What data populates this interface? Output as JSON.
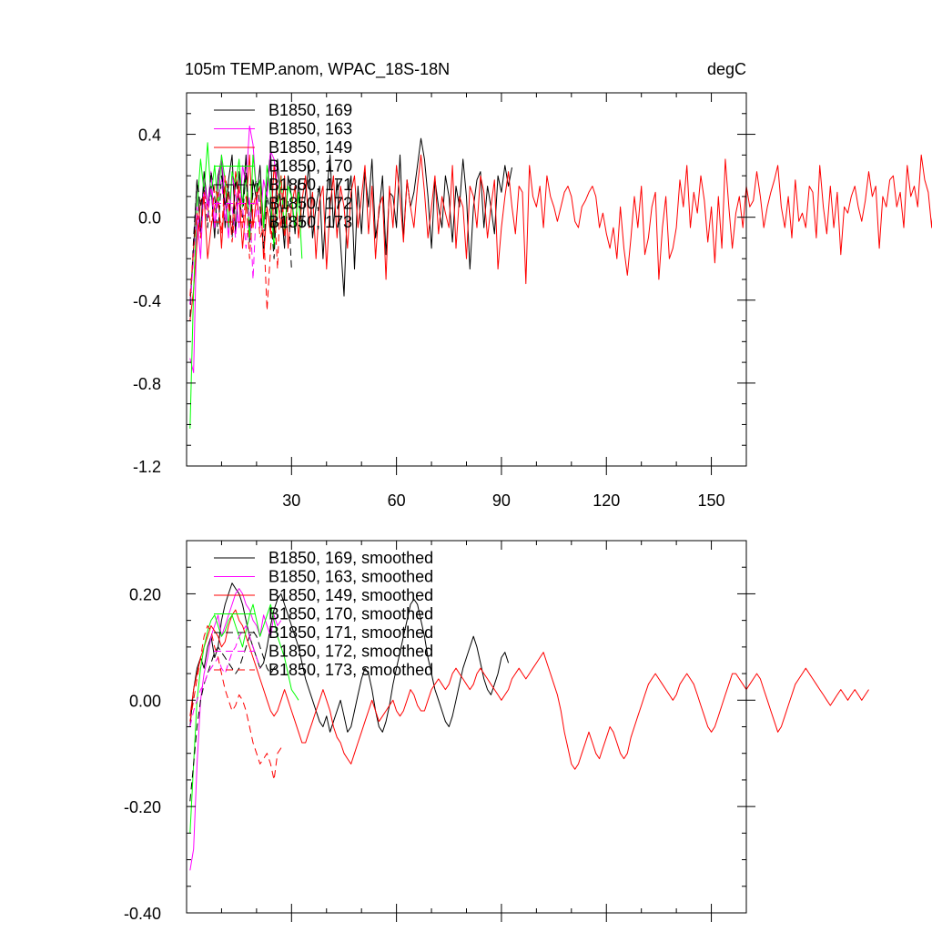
{
  "chart_data": [
    {
      "type": "line",
      "title": "105m TEMP.anom, WPAC_18S-18N",
      "units": "degC",
      "xlim": [
        0,
        160
      ],
      "ylim": [
        -1.2,
        0.6
      ],
      "xticks": [
        30,
        60,
        90,
        120,
        150
      ],
      "xtick_labels": [
        "30",
        "60",
        "90",
        "120",
        "150"
      ],
      "yticks": [
        0.4,
        0.0,
        -0.4,
        -0.8,
        -1.2
      ],
      "ytick_labels": [
        "0.4",
        "0.0",
        "-0.4",
        "-0.8",
        "-1.2"
      ],
      "legend": [
        "B1850, 169",
        "B1850, 163",
        "B1850, 149",
        "B1850, 170",
        "B1850, 171",
        "B1850, 172",
        "B1850, 173"
      ],
      "series": [
        {
          "name": "B1850, 169",
          "color": "#000000",
          "dash": "solid",
          "values": [
            -0.42,
            -0.15,
            0.18,
            -0.08,
            0.22,
            0.05,
            0.15,
            -0.1,
            0.2,
            0.28,
            -0.05,
            0.18,
            0.3,
            -0.08,
            0.22,
            0.05,
            0.3,
            -0.12,
            0.18,
            0.08,
            0.25,
            -0.05,
            0.15,
            0.32,
            -0.1,
            0.28,
            0.05,
            -0.15,
            0.2,
            0.1,
            -0.08,
            0.18,
            -0.05,
            0.12,
            0.25,
            -0.1,
            0.05,
            0.15,
            -0.2,
            0.1,
            0.3,
            -0.05,
            0.18,
            -0.12,
            -0.38,
            0.08,
            0.2,
            -0.25,
            0.15,
            -0.08,
            0.22,
            0.05,
            0.28,
            -0.1,
            0.02,
            0.2,
            -0.18,
            0.12,
            0.1,
            -0.05,
            0.3,
            -0.1,
            0.18,
            0.05,
            0.12,
            0.25,
            0.38,
            0.28,
            0.1,
            -0.15,
            0.18,
            0.05,
            -0.05,
            0.2,
            0.1,
            -0.12,
            0.15,
            0.05,
            0.28,
            0.1,
            -0.25,
            0.05,
            0.18,
            0.22,
            -0.05,
            0.15,
            0.05,
            -0.08,
            0.2,
            0.12,
            0.25,
            0.15,
            0.24
          ]
        },
        {
          "name": "B1850, 163",
          "color": "#ff00ff",
          "dash": "solid",
          "values": [
            -0.68,
            -0.75,
            0.0,
            -0.2,
            0.18,
            0.05,
            0.22,
            -0.05,
            0.15,
            0.3,
            0.08,
            -0.1,
            0.2,
            0.12,
            -0.05,
            0.25,
            0.15,
            0.44,
            0.35,
            0.12,
            -0.05,
            0.18,
            0.1,
            0.32,
            0.28,
            0.15
          ]
        },
        {
          "name": "B1850, 149",
          "color": "#ff0000",
          "dash": "solid",
          "values": [
            -0.5,
            -0.35,
            -0.12,
            0.08,
            0.1,
            -0.2,
            -0.05,
            0.05,
            0.12,
            -0.15,
            0.15,
            0.05,
            -0.08,
            0.22,
            0.1,
            -0.15,
            0.05,
            0.3,
            -0.05,
            0.1,
            0.15,
            -0.2,
            0.05,
            -0.08,
            0.25,
            0.1,
            -0.05,
            0.2,
            -0.15,
            0.05,
            0.15,
            -0.1,
            0.08,
            0.2,
            -0.05,
            0.12,
            -0.2,
            0.08,
            0.15,
            -0.25,
            0.05,
            0.2,
            -0.1,
            0.15,
            0.05,
            -0.15,
            0.12,
            0.2,
            -0.05,
            0.1,
            0.25,
            -0.08,
            0.15,
            -0.2,
            0.05,
            0.1,
            -0.3,
            0.15,
            -0.05,
            0.25,
            0.1,
            -0.12,
            0.18,
            0.05,
            -0.05,
            0.15,
            0.3,
            0.12,
            -0.1,
            0.05,
            0.2,
            -0.08,
            0.1,
            0.02,
            -0.05,
            0.25,
            -0.15,
            0.1,
            0.05,
            -0.2,
            0.15,
            0.1,
            -0.05,
            0.2,
            0.12,
            -0.1,
            0.05,
            0.18,
            -0.25,
            -0.05,
            0.1,
            0.22,
            0.05,
            -0.08,
            0.15,
            0.12,
            -0.32,
            0.25,
            0.1,
            0.05,
            0.15,
            -0.05,
            0.2,
            0.1,
            0.05,
            -0.02,
            0.05,
            0.12,
            0.15,
            0.1,
            -0.02,
            -0.05,
            0.05,
            0.08,
            0.12,
            0.15,
            0.1,
            -0.05,
            0.02,
            -0.08,
            -0.15,
            -0.05,
            -0.2,
            0.05,
            -0.15,
            -0.28,
            -0.1,
            0.1,
            -0.05,
            0.15,
            -0.18,
            -0.1,
            0.05,
            0.12,
            -0.3,
            -0.05,
            0.1,
            -0.2,
            -0.15,
            -0.05,
            0.18,
            0.05,
            0.25,
            -0.05,
            0.12,
            0.02,
            0.2,
            0.08,
            -0.12,
            0.05,
            -0.22,
            0.1,
            -0.15,
            0.28,
            0.05,
            -0.15,
            0.02,
            0.1,
            -0.05,
            0.15,
            0.05,
            0.08,
            0.22,
            0.1,
            -0.05,
            0.05,
            0.12,
            0.18,
            0.25,
            0.05,
            -0.05,
            0.1,
            -0.1,
            0.18,
            -0.02,
            0.02,
            -0.05,
            0.15,
            0.12,
            -0.1,
            0.25,
            0.05,
            -0.08,
            0.15,
            -0.05,
            0.12,
            -0.18,
            0.05,
            0.02,
            0.1,
            0.15,
            0.05,
            -0.02,
            0.08,
            0.22,
            0.1,
            0.15,
            -0.15,
            0.1,
            0.05,
            0.18,
            0.2,
            0.05,
            0.12,
            -0.05,
            0.25,
            0.1,
            0.15,
            0.05,
            0.3,
            0.18,
            0.12,
            -0.05,
            0.2,
            0.02,
            0.08,
            0.18,
            -0.08,
            0.1,
            0.05,
            0.12,
            0.22,
            -0.15,
            0.25
          ]
        },
        {
          "name": "B1850, 170",
          "color": "#00ff00",
          "dash": "solid",
          "values": [
            -1.02,
            -0.35,
            0.05,
            0.28,
            0.12,
            0.36,
            0.1,
            0.25,
            0.05,
            0.3,
            0.18,
            -0.05,
            0.22,
            0.15,
            0.28,
            0.05,
            0.2,
            -0.1,
            0.3,
            0.12,
            0.18,
            -0.05,
            0.25,
            0.1,
            -0.15,
            0.05,
            0.2,
            -0.08,
            0.15,
            0.1,
            -0.05,
            0.12,
            -0.2
          ]
        },
        {
          "name": "B1850, 171",
          "color": "#000000",
          "dash": "dashed",
          "values": [
            -0.48,
            -0.1,
            0.18,
            0.05,
            0.15,
            -0.05,
            0.22,
            0.1,
            -0.08,
            0.2,
            0.05,
            0.15,
            -0.1,
            0.18,
            0.08,
            0.0,
            0.22,
            -0.05,
            0.12,
            0.18,
            0.05,
            -0.15,
            0.1,
            0.02,
            -0.2,
            0.15,
            0.05,
            -0.1,
            0.08,
            -0.25
          ]
        },
        {
          "name": "B1850, 172",
          "color": "#ff00ff",
          "dash": "dashed",
          "values": [
            -0.42,
            -0.2,
            0.05,
            -0.08,
            0.12,
            0.0,
            0.15,
            -0.05,
            0.08,
            0.18,
            -0.02,
            0.1,
            0.05,
            -0.1,
            0.15,
            0.05,
            -0.15,
            0.1,
            -0.3,
            0.08,
            -0.05
          ]
        },
        {
          "name": "B1850, 173",
          "color": "#ff0000",
          "dash": "dashed",
          "values": [
            -0.38,
            -0.15,
            0.02,
            -0.1,
            0.12,
            0.05,
            -0.05,
            0.15,
            0.08,
            -0.08,
            0.2,
            0.1,
            -0.12,
            0.05,
            0.15,
            -0.05,
            0.1,
            -0.2,
            0.05,
            0.12,
            -0.1,
            -0.05,
            -0.45,
            -0.15,
            0.1,
            -0.25,
            0.2,
            -0.1,
            0.05,
            -0.05
          ]
        }
      ]
    },
    {
      "type": "line",
      "xlim": [
        0,
        160
      ],
      "ylim": [
        -0.4,
        0.3
      ],
      "xticks": [
        30,
        60,
        90,
        120,
        150
      ],
      "yticks": [
        0.2,
        0.0,
        -0.2,
        -0.4
      ],
      "ytick_labels": [
        "0.20",
        "0.00",
        "-0.20",
        "-0.40"
      ],
      "legend": [
        "B1850, 169, smoothed",
        "B1850, 163, smoothed",
        "B1850, 149, smoothed",
        "B1850, 170, smoothed",
        "B1850, 171, smoothed",
        "B1850, 172, smoothed",
        "B1850, 173, smoothed"
      ],
      "series": [
        {
          "name": "B1850, 169, smoothed",
          "color": "#000000",
          "dash": "solid",
          "values": [
            -0.05,
            0.02,
            0.06,
            0.08,
            0.06,
            0.1,
            0.12,
            0.08,
            0.1,
            0.15,
            0.18,
            0.2,
            0.22,
            0.21,
            0.2,
            0.18,
            0.15,
            0.12,
            0.1,
            0.08,
            0.06,
            0.07,
            0.1,
            0.14,
            0.17,
            0.19,
            0.2,
            0.18,
            0.16,
            0.14,
            0.12,
            0.1,
            0.07,
            0.04,
            0.02,
            0.0,
            -0.02,
            -0.04,
            -0.05,
            -0.03,
            -0.06,
            -0.04,
            -0.02,
            0.0,
            -0.03,
            -0.06,
            -0.05,
            -0.02,
            0.01,
            0.04,
            0.06,
            0.05,
            0.02,
            -0.02,
            -0.05,
            -0.06,
            -0.04,
            -0.01,
            0.03,
            0.06,
            0.09,
            0.12,
            0.15,
            0.18,
            0.19,
            0.18,
            0.15,
            0.12,
            0.08,
            0.05,
            0.02,
            0.0,
            -0.02,
            -0.04,
            -0.05,
            -0.03,
            0.0,
            0.03,
            0.06,
            0.08,
            0.1,
            0.12,
            0.1,
            0.07,
            0.04,
            0.02,
            0.01,
            0.03,
            0.05,
            0.08,
            0.09,
            0.07
          ]
        },
        {
          "name": "B1850, 163, smoothed",
          "color": "#ff00ff",
          "dash": "solid",
          "values": [
            -0.32,
            -0.28,
            -0.12,
            0.0,
            0.05,
            0.08,
            0.12,
            0.14,
            0.16,
            0.12,
            0.14,
            0.16,
            0.18,
            0.2,
            0.21,
            0.2,
            0.18,
            0.17,
            0.15,
            0.14,
            0.12,
            0.16,
            0.14,
            0.12,
            0.16,
            0.14,
            0.15
          ]
        },
        {
          "name": "B1850, 149, smoothed",
          "color": "#ff0000",
          "dash": "solid",
          "values": [
            -0.03,
            0.02,
            0.05,
            0.08,
            0.1,
            0.12,
            0.14,
            0.13,
            0.12,
            0.1,
            0.11,
            0.14,
            0.16,
            0.17,
            0.15,
            0.14,
            0.12,
            0.1,
            0.08,
            0.06,
            0.04,
            0.02,
            0.0,
            -0.02,
            -0.03,
            -0.02,
            0.0,
            0.02,
            0.0,
            -0.02,
            -0.04,
            -0.06,
            -0.08,
            -0.08,
            -0.06,
            -0.04,
            -0.02,
            0.0,
            0.02,
            0.0,
            -0.02,
            -0.05,
            -0.07,
            -0.08,
            -0.1,
            -0.11,
            -0.12,
            -0.1,
            -0.08,
            -0.06,
            -0.04,
            -0.02,
            0.0,
            -0.02,
            -0.04,
            -0.03,
            -0.02,
            -0.01,
            0.0,
            -0.02,
            -0.03,
            -0.02,
            0.0,
            0.02,
            0.01,
            -0.01,
            -0.02,
            -0.02,
            0.0,
            0.02,
            0.03,
            0.04,
            0.03,
            0.02,
            0.03,
            0.05,
            0.06,
            0.05,
            0.04,
            0.03,
            0.02,
            0.03,
            0.05,
            0.06,
            0.05,
            0.04,
            0.03,
            0.02,
            0.01,
            0.0,
            0.01,
            0.02,
            0.04,
            0.05,
            0.06,
            0.05,
            0.04,
            0.05,
            0.06,
            0.07,
            0.08,
            0.09,
            0.07,
            0.05,
            0.03,
            0.01,
            -0.02,
            -0.06,
            -0.09,
            -0.12,
            -0.13,
            -0.12,
            -0.1,
            -0.08,
            -0.06,
            -0.08,
            -0.1,
            -0.11,
            -0.09,
            -0.07,
            -0.05,
            -0.06,
            -0.08,
            -0.1,
            -0.11,
            -0.1,
            -0.07,
            -0.05,
            -0.03,
            -0.01,
            0.01,
            0.03,
            0.04,
            0.05,
            0.04,
            0.03,
            0.02,
            0.01,
            0.0,
            0.01,
            0.03,
            0.04,
            0.05,
            0.04,
            0.03,
            0.01,
            -0.01,
            -0.03,
            -0.05,
            -0.06,
            -0.05,
            -0.03,
            -0.01,
            0.01,
            0.03,
            0.05,
            0.05,
            0.04,
            0.03,
            0.02,
            0.03,
            0.04,
            0.05,
            0.04,
            0.02,
            0.0,
            -0.02,
            -0.04,
            -0.06,
            -0.05,
            -0.03,
            -0.01,
            0.01,
            0.03,
            0.04,
            0.05,
            0.06,
            0.05,
            0.04,
            0.03,
            0.02,
            0.01,
            0.0,
            -0.01,
            0.0,
            0.01,
            0.02,
            0.01,
            0.0,
            0.01,
            0.02,
            0.01,
            0.0,
            0.01,
            0.02
          ]
        },
        {
          "name": "B1850, 170, smoothed",
          "color": "#00ff00",
          "dash": "solid",
          "values": [
            -0.25,
            -0.12,
            0.0,
            0.06,
            0.1,
            0.13,
            0.15,
            0.16,
            0.14,
            0.12,
            0.13,
            0.15,
            0.16,
            0.14,
            0.12,
            0.1,
            0.13,
            0.16,
            0.18,
            0.15,
            0.12,
            0.14,
            0.16,
            0.18,
            0.15,
            0.12,
            0.1,
            0.08,
            0.05,
            0.02,
            0.01,
            0.0
          ]
        },
        {
          "name": "B1850, 171, smoothed",
          "color": "#000000",
          "dash": "dashed",
          "values": [
            -0.19,
            -0.12,
            -0.05,
            0.0,
            0.03,
            0.05,
            0.07,
            0.09,
            0.1,
            0.09,
            0.08,
            0.07,
            0.06,
            0.05,
            0.06,
            0.08,
            0.1,
            0.12,
            0.13,
            0.12,
            0.1,
            0.08,
            0.06,
            0.05,
            0.06,
            0.07
          ]
        },
        {
          "name": "B1850, 172, smoothed",
          "color": "#ff00ff",
          "dash": "dashed",
          "values": [
            -0.05,
            -0.02,
            0.0,
            0.02,
            0.03,
            0.05,
            0.06,
            0.07,
            0.08,
            0.06,
            0.05,
            0.07,
            0.09,
            0.1,
            0.12,
            0.13,
            0.14,
            0.12,
            0.1,
            0.08,
            0.06
          ]
        },
        {
          "name": "B1850, 173, smoothed",
          "color": "#ff0000",
          "dash": "dashed",
          "values": [
            -0.04,
            0.0,
            0.04,
            0.08,
            0.12,
            0.14,
            0.13,
            0.1,
            0.08,
            0.05,
            0.02,
            0.0,
            -0.02,
            -0.01,
            0.01,
            0.0,
            -0.02,
            -0.05,
            -0.08,
            -0.1,
            -0.12,
            -0.11,
            -0.1,
            -0.12,
            -0.15,
            -0.1,
            -0.09,
            -0.09
          ]
        }
      ]
    }
  ]
}
